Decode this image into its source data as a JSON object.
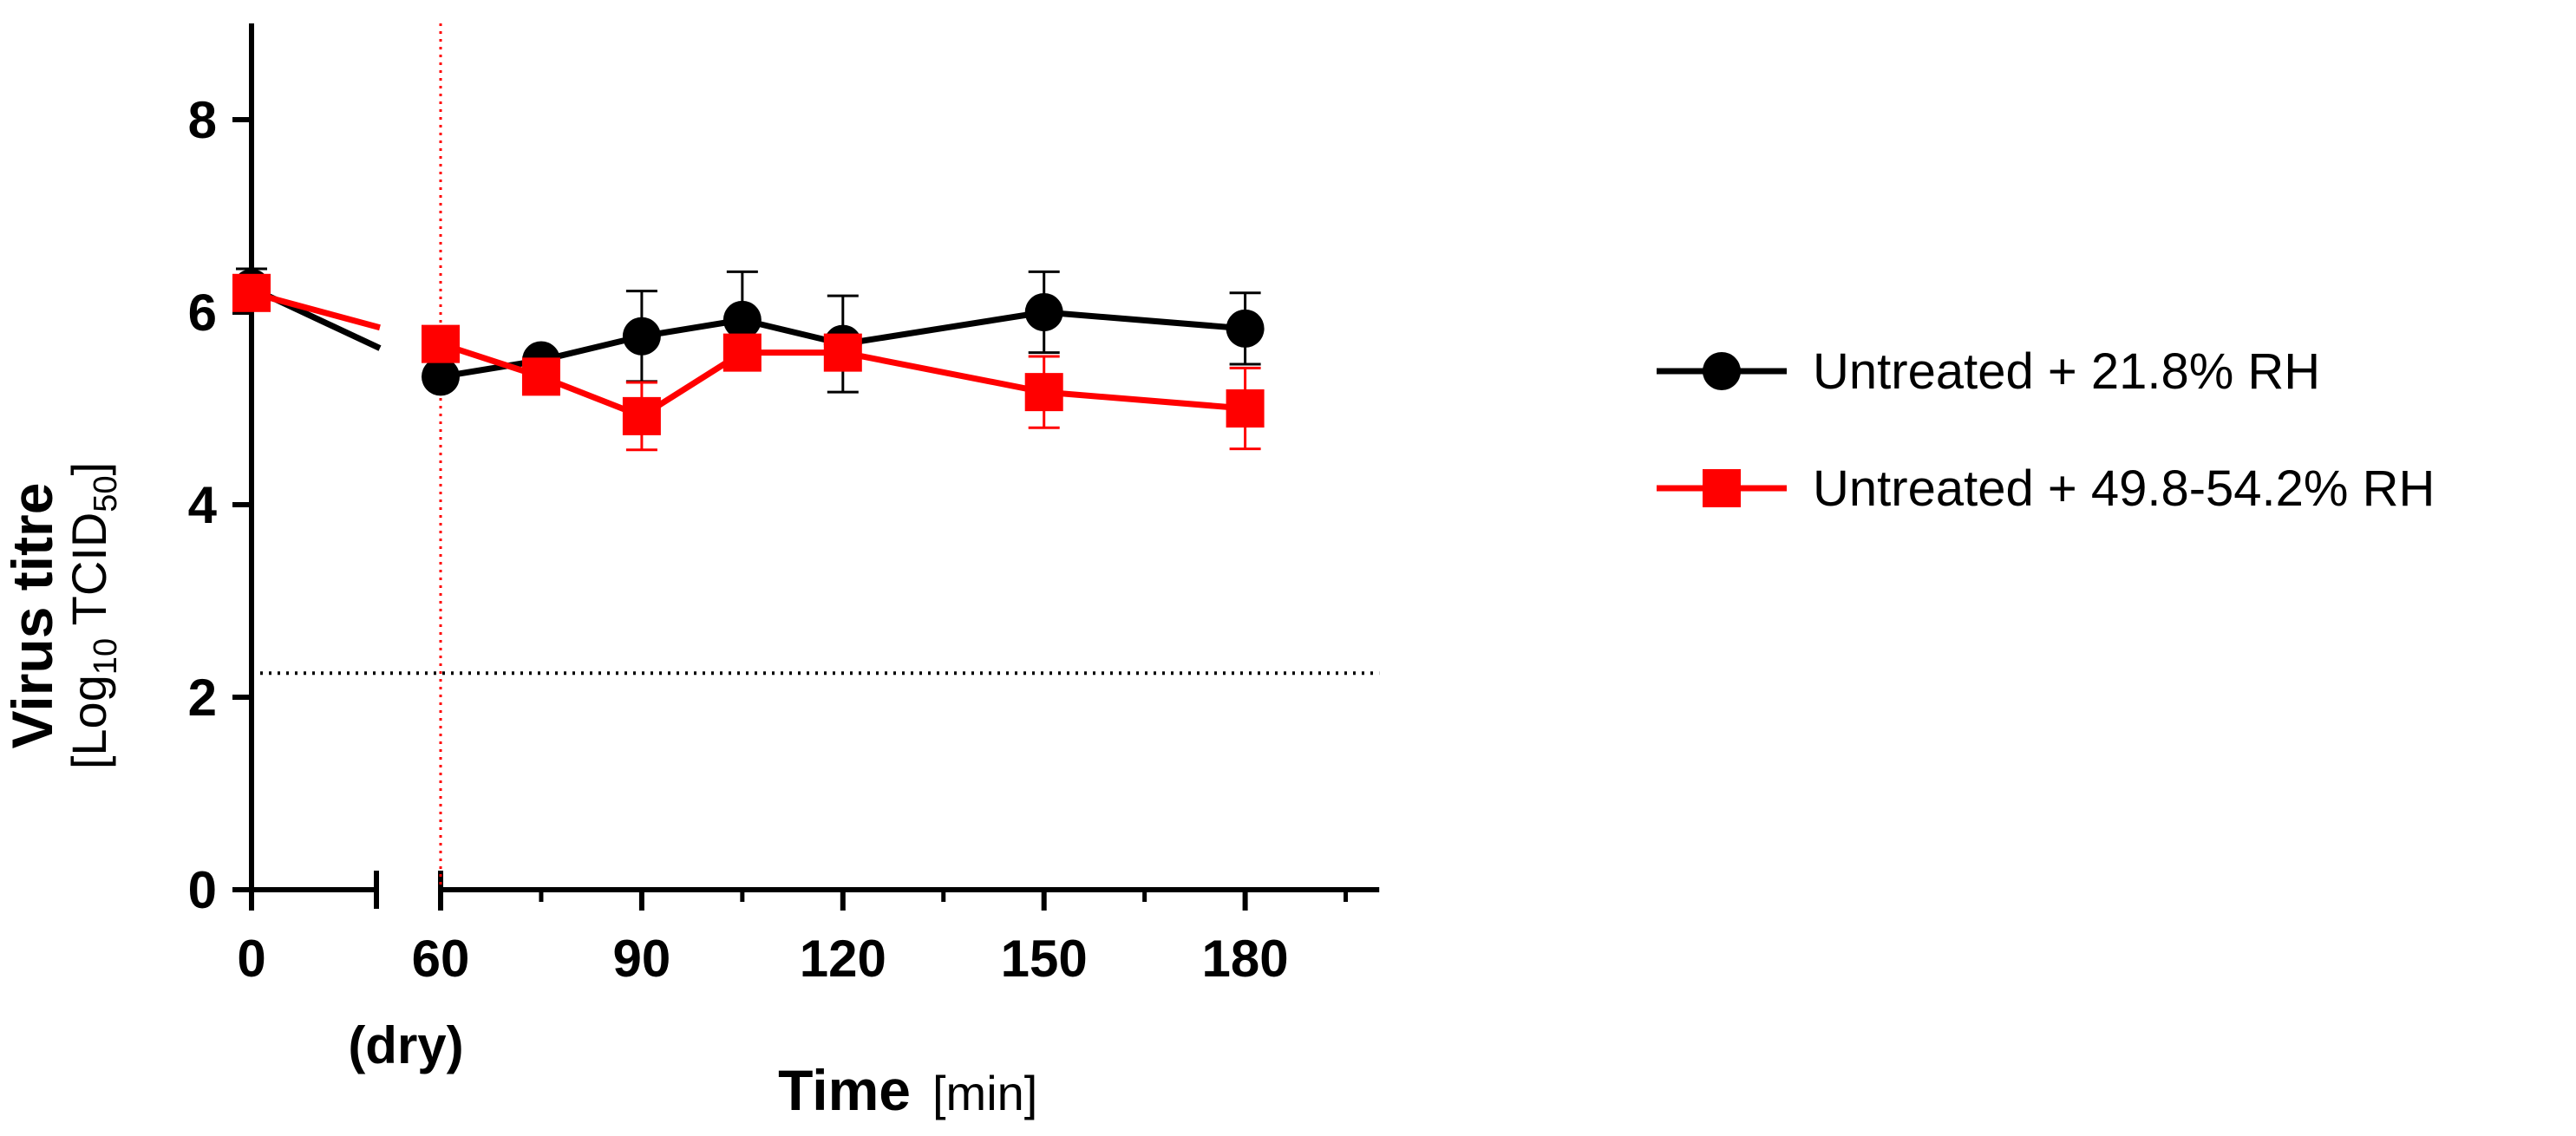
{
  "chart_data": {
    "type": "line",
    "title": "",
    "ylabel": {
      "main": "Virus titre",
      "unit_prefix": "[Log",
      "unit_sub1": "10",
      "unit_mid": " TCID",
      "unit_sub2": "50",
      "unit_suffix": "]"
    },
    "xlabel": {
      "main": "Time",
      "unit": "[min]"
    },
    "x_ticks": [
      {
        "value": 0,
        "label": "0"
      },
      {
        "value": 60,
        "label": "60"
      },
      {
        "value": 90,
        "label": "90"
      },
      {
        "value": 120,
        "label": "120"
      },
      {
        "value": 150,
        "label": "150"
      },
      {
        "value": 180,
        "label": "180"
      }
    ],
    "x_tick_sublabel": {
      "value": 60,
      "label": "(dry)"
    },
    "minor_x_ticks": [
      75,
      105,
      135,
      165,
      195
    ],
    "y_ticks": [
      0,
      2,
      4,
      6,
      8
    ],
    "ylim": [
      0,
      9
    ],
    "xlim_segment1": [
      0,
      20
    ],
    "xlim_segment2": [
      60,
      200
    ],
    "axis_break": true,
    "detection_limit": 2.25,
    "dry_marker_x": 60,
    "series": [
      {
        "name": "Untreated + 21.8% RH",
        "color": "#000000",
        "marker": "circle",
        "x": [
          0,
          60,
          75,
          90,
          105,
          120,
          150,
          180
        ],
        "y": [
          6.25,
          5.33,
          5.5,
          5.75,
          5.92,
          5.67,
          6.0,
          5.83
        ],
        "err": [
          0.2,
          0.05,
          0.05,
          0.47,
          0.5,
          0.5,
          0.42,
          0.37
        ]
      },
      {
        "name": "Untreated + 49.8-54.2% RH",
        "color": "#ff0000",
        "marker": "square",
        "x": [
          0,
          60,
          75,
          90,
          105,
          120,
          150,
          180
        ],
        "y": [
          6.2,
          5.67,
          5.33,
          4.92,
          5.58,
          5.58,
          5.17,
          5.0
        ],
        "err": [
          0.15,
          0.05,
          0.1,
          0.35,
          0.15,
          0.15,
          0.37,
          0.42
        ]
      }
    ],
    "legend_placement": "right"
  }
}
